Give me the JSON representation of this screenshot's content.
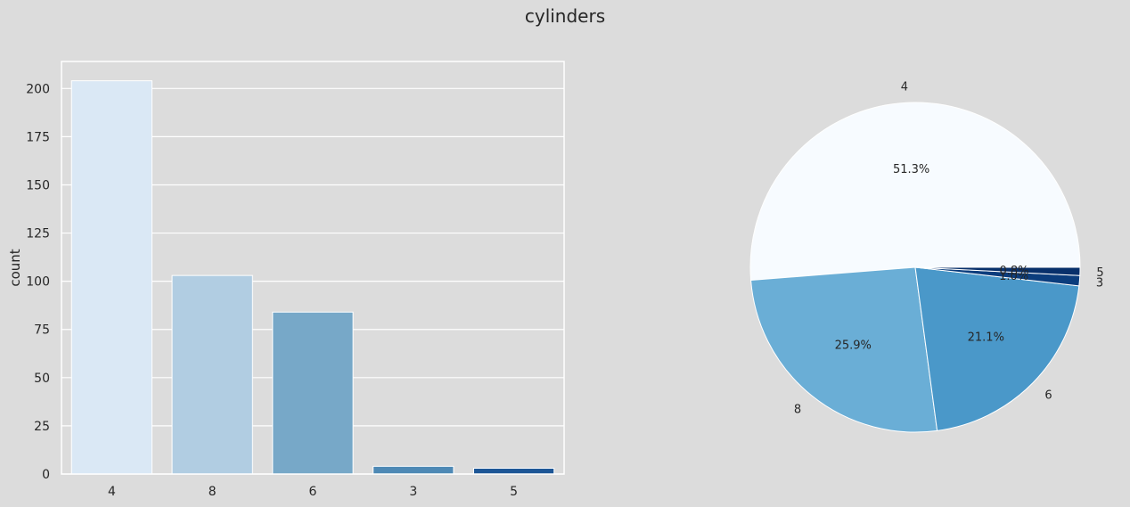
{
  "title": "cylinders",
  "chart_data": [
    {
      "type": "bar",
      "categories": [
        "4",
        "8",
        "6",
        "3",
        "5"
      ],
      "values": [
        204,
        103,
        84,
        4,
        3
      ],
      "colors": [
        "#dae8f5",
        "#b1cde2",
        "#77a8c8",
        "#4e89b5",
        "#1d5696"
      ],
      "xlabel": "",
      "ylabel": "count",
      "ylim": [
        0,
        214
      ],
      "yticks": [
        0,
        25,
        50,
        75,
        100,
        125,
        150,
        175,
        200
      ],
      "grid": true
    },
    {
      "type": "pie",
      "labels": [
        "4",
        "8",
        "6",
        "3",
        "5"
      ],
      "values": [
        51.3,
        25.9,
        21.1,
        1.0,
        0.8
      ],
      "pct_labels": [
        "51.3%",
        "25.9%",
        "21.1%",
        "1.0%",
        "0.8%"
      ],
      "colors": [
        "#f7fbff",
        "#6aaed6",
        "#4a98c9",
        "#0b3d7d",
        "#08306b"
      ]
    }
  ]
}
